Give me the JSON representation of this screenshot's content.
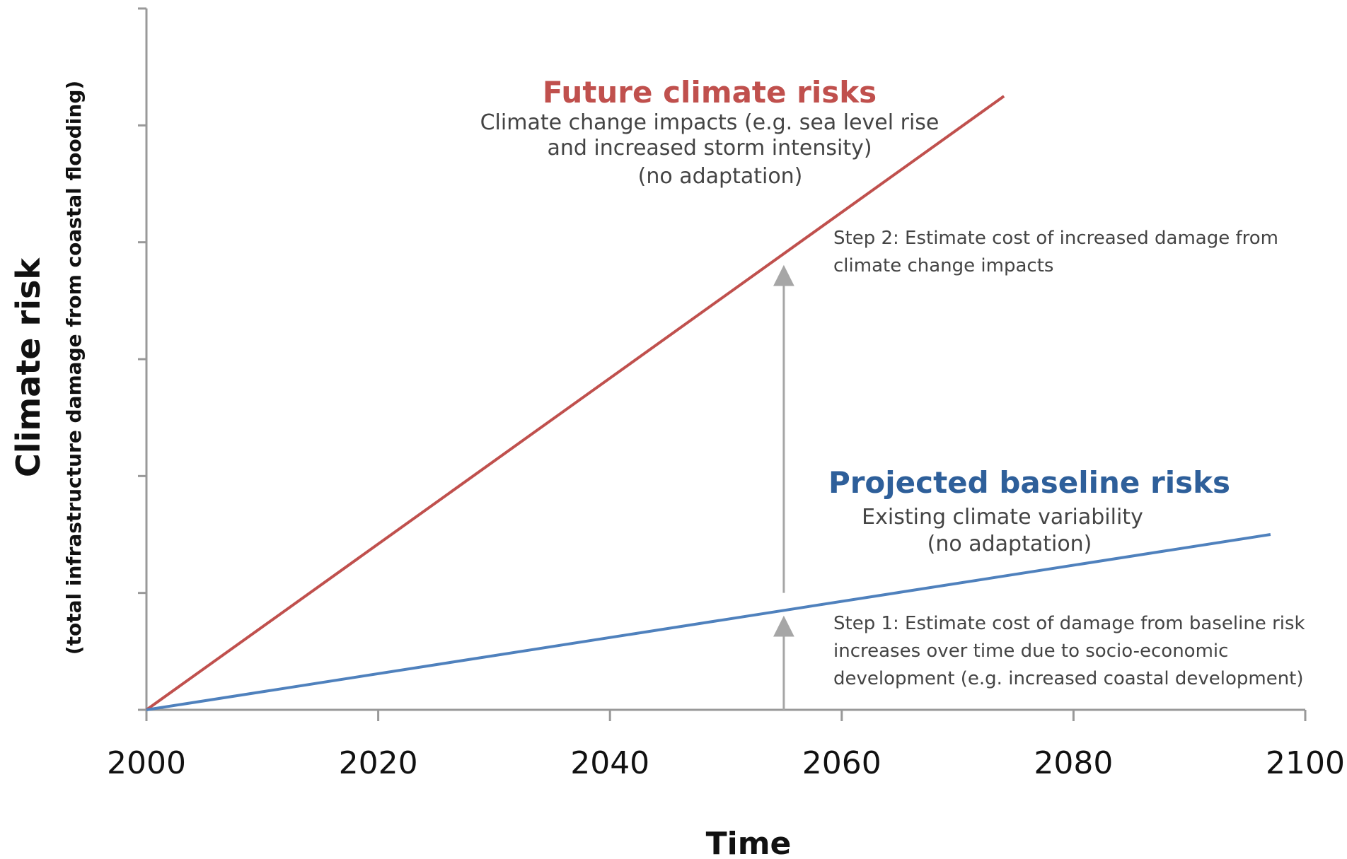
{
  "chart_data": {
    "type": "line",
    "xlabel": "Time",
    "ylabel": "Climate risk",
    "ylabel_sub": "(total infrastructure damage from coastal flooding)",
    "x_ticks": [
      "2000",
      "2020",
      "2040",
      "2060",
      "2080",
      "2100"
    ],
    "xlim": [
      2000,
      2100
    ],
    "ylim": [
      0,
      12
    ],
    "y_tick_count": 6,
    "grid": false,
    "legend": "none",
    "series": [
      {
        "name": "Future climate risks",
        "color": "#c0504d",
        "x": [
          2000,
          2074
        ],
        "y": [
          0,
          10.5
        ],
        "note": [
          "Climate change impacts (e.g. sea level rise",
          "and increased storm intensity)",
          "(no adaptation)"
        ]
      },
      {
        "name": "Projected baseline risks",
        "color": "#4f81bd",
        "x": [
          2000,
          2097
        ],
        "y": [
          0,
          3
        ],
        "note": [
          "Existing climate variability",
          "(no adaptation)"
        ]
      }
    ],
    "annotations": [
      {
        "id": "step1",
        "lines": [
          "Step 1: Estimate cost of damage from  baseline risk",
          "increases over time due to socio-economic",
          "development (e.g. increased coastal development)"
        ],
        "arrow_x": 2055,
        "arrow_from_y": 0,
        "arrow_to_y": 1.6
      },
      {
        "id": "step2",
        "lines": [
          "Step 2: Estimate cost of increased damage from",
          "climate change impacts"
        ],
        "arrow_x": 2055,
        "arrow_from_y": 2,
        "arrow_to_y": 7.6
      }
    ],
    "arrow_color": "#a6a6a6"
  }
}
